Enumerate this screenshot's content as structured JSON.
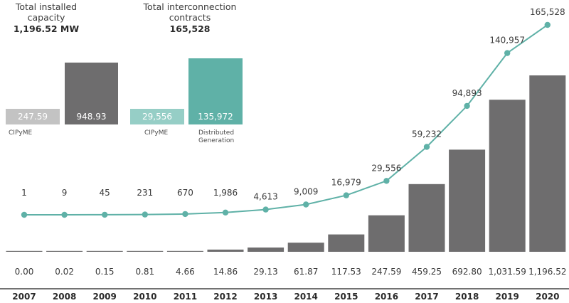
{
  "summary": {
    "capacity": {
      "title_line1": "Total installed",
      "title_line2": "capacity",
      "value": "1,196.52 MW",
      "bars": [
        {
          "label": "CIPyME",
          "value": 247.59,
          "value_text": "247.59",
          "color": "#c3c3c3"
        },
        {
          "label": "",
          "value": 948.93,
          "value_text": "948.93",
          "color": "#6e6d6e"
        }
      ]
    },
    "contracts": {
      "title_line1": "Total interconnection",
      "title_line2": "contracts",
      "value": "165,528",
      "bars": [
        {
          "label": "CIPyME",
          "value": 29556,
          "value_text": "29,556",
          "color": "#96cec6"
        },
        {
          "label_line1": "Distributed",
          "label_line2": "Generation",
          "value": 135972,
          "value_text": "135,972",
          "color": "#5fb1a7"
        }
      ]
    }
  },
  "chart_data": {
    "type": "bar",
    "categories": [
      "2007",
      "2008",
      "2009",
      "2010",
      "2011",
      "2012",
      "2013",
      "2014",
      "2015",
      "2016",
      "2017",
      "2018",
      "2019",
      "2020"
    ],
    "series": [
      {
        "kind": "bar",
        "color": "#6e6d6e",
        "values": [
          0.0,
          0.02,
          0.15,
          0.81,
          4.66,
          14.86,
          29.13,
          61.87,
          117.53,
          247.59,
          459.25,
          692.8,
          1031.59,
          1196.52
        ],
        "labels": [
          "0.00",
          "0.02",
          "0.15",
          "0.81",
          "4.66",
          "14.86",
          "29.13",
          "61.87",
          "117.53",
          "247.59",
          "459.25",
          "692.80",
          "1,031.59",
          "1,196.52"
        ]
      },
      {
        "kind": "line",
        "color": "#5fb1a7",
        "values": [
          1,
          9,
          45,
          231,
          670,
          1986,
          4613,
          9009,
          16979,
          29556,
          59232,
          94893,
          140957,
          165528
        ],
        "labels": [
          "1",
          "9",
          "45",
          "231",
          "670",
          "1,986",
          "4,613",
          "9,009",
          "16,979",
          "29,556",
          "59,232",
          "94,893",
          "140,957",
          "165,528"
        ]
      }
    ],
    "grid": false,
    "legend": "none"
  }
}
